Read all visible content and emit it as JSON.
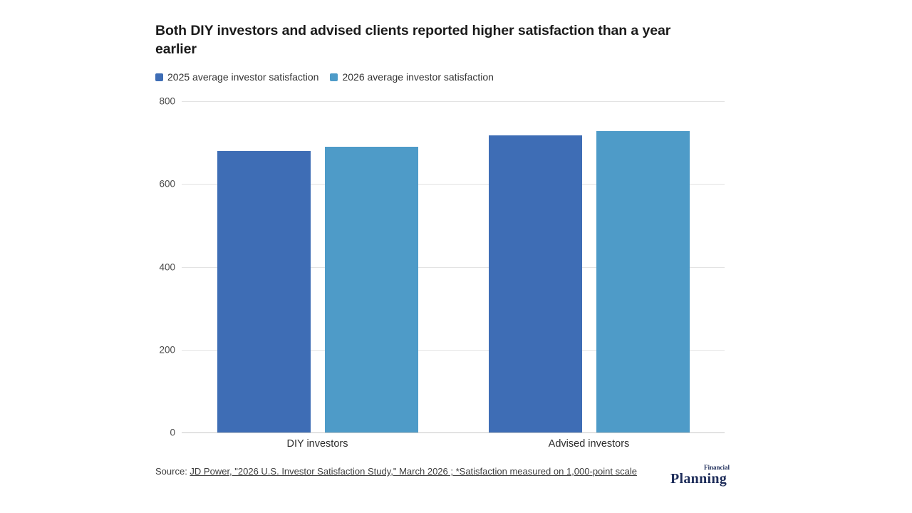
{
  "chart": {
    "title": "Both DIY investors and advised clients reported higher satisfaction than a year earlier"
  },
  "source": {
    "prefix": "Source: ",
    "link_text": "JD Power, \"2026 U.S. Investor Satisfaction Study,\" March 2026 ; *Satisfaction measured on 1,000-point scale"
  },
  "logo": {
    "top": "Financial",
    "bottom": "Planning",
    "color": "#1e2d5a"
  },
  "chart_data": {
    "type": "bar",
    "title": "Both DIY investors and advised clients reported higher satisfaction than a year earlier",
    "categories": [
      "DIY investors",
      "Advised investors"
    ],
    "series": [
      {
        "name": "2025 average investor satisfaction",
        "color": "#3e6db5",
        "values": [
          680,
          717
        ]
      },
      {
        "name": "2026 average investor satisfaction",
        "color": "#4e9bc8",
        "values": [
          690,
          727
        ]
      }
    ],
    "ylim": [
      0,
      800
    ],
    "yticks": [
      0,
      200,
      400,
      600,
      800
    ],
    "grid": true,
    "legend_position": "top",
    "xlabel": "",
    "ylabel": ""
  }
}
